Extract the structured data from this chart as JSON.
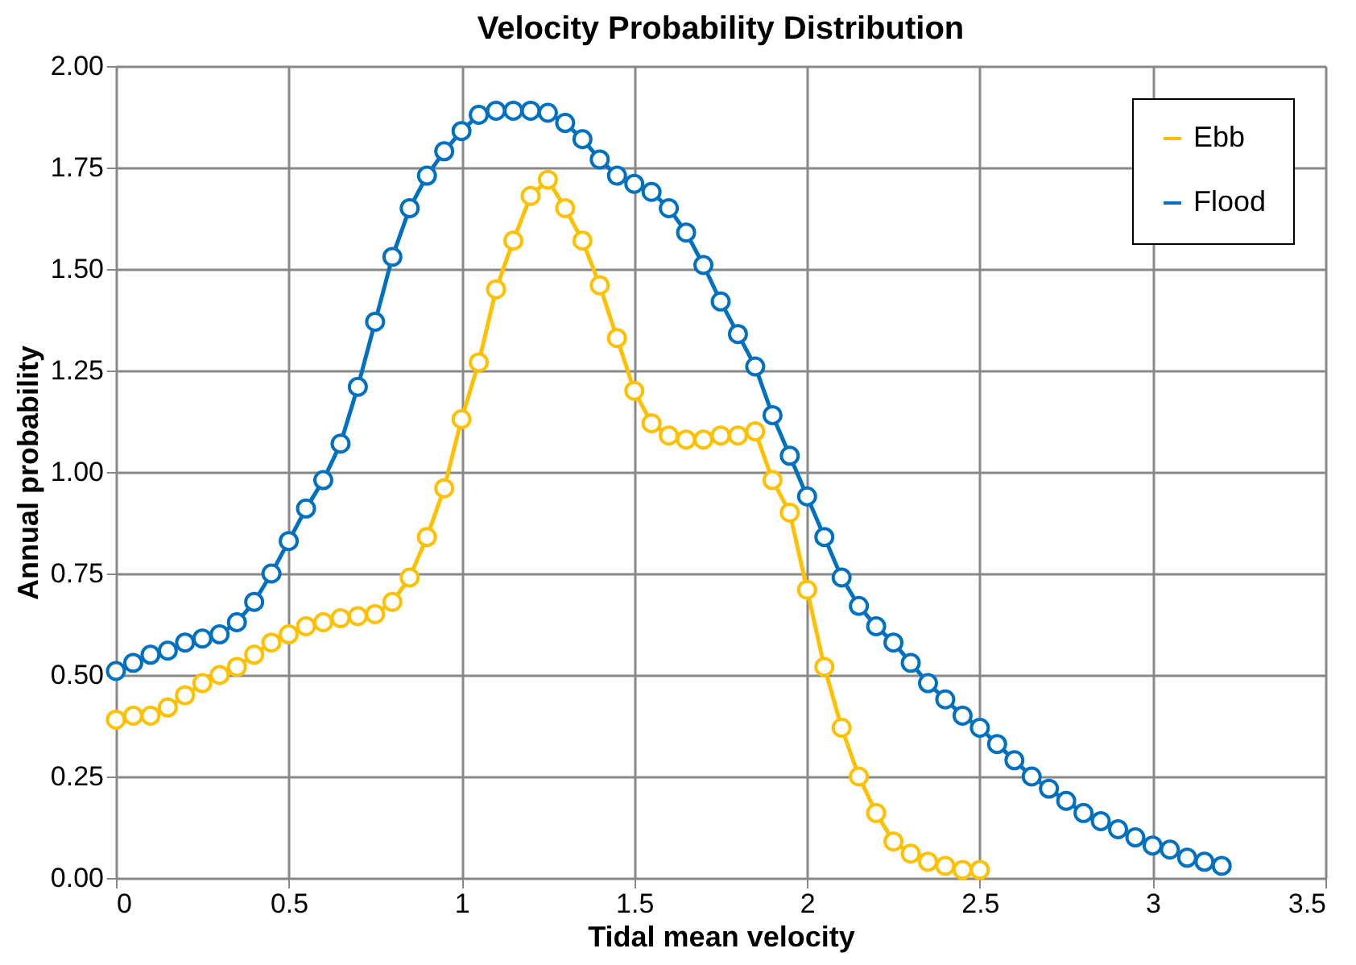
{
  "chart_data": {
    "type": "line",
    "title": "Velocity Probability Distribution",
    "xlabel": "Tidal mean velocity",
    "ylabel": "Annual probability",
    "xlim": [
      0,
      3.5
    ],
    "xticks": [
      0,
      0.5,
      1,
      1.5,
      2,
      2.5,
      3,
      3.5
    ],
    "ylim": [
      0,
      2
    ],
    "yticks": [
      {
        "value": 0,
        "label": "0.00"
      },
      {
        "value": 0.25,
        "label": "0.25"
      },
      {
        "value": 0.5,
        "label": "0.50"
      },
      {
        "value": 0.75,
        "label": "0.75"
      },
      {
        "value": 1,
        "label": "1.00"
      },
      {
        "value": 1.25,
        "label": "1.25"
      },
      {
        "value": 1.5,
        "label": "1.50"
      },
      {
        "value": 1.75,
        "label": "1.75"
      },
      {
        "value": 2,
        "label": "2.00"
      }
    ],
    "grid": true,
    "legend": "top right",
    "marker": "circle",
    "line_style": "solid",
    "series": [
      {
        "name": "Ebb",
        "color": "#ffc000",
        "x": [
          0,
          0.05,
          0.1,
          0.15,
          0.2,
          0.25,
          0.3,
          0.35,
          0.4,
          0.45,
          0.5,
          0.55,
          0.6,
          0.65,
          0.7,
          0.75,
          0.8,
          0.85,
          0.9,
          0.95,
          1.0,
          1.05,
          1.1,
          1.15,
          1.2,
          1.25,
          1.3,
          1.35,
          1.4,
          1.45,
          1.5,
          1.55,
          1.6,
          1.65,
          1.7,
          1.75,
          1.8,
          1.85,
          1.9,
          1.95,
          2.0,
          2.05,
          2.1,
          2.15,
          2.2,
          2.25,
          2.3,
          2.35,
          2.4,
          2.45,
          2.5
        ],
        "values": [
          0.39,
          0.4,
          0.4,
          0.42,
          0.45,
          0.48,
          0.5,
          0.52,
          0.55,
          0.58,
          0.6,
          0.62,
          0.63,
          0.64,
          0.645,
          0.65,
          0.68,
          0.74,
          0.84,
          0.96,
          1.13,
          1.27,
          1.45,
          1.57,
          1.68,
          1.72,
          1.65,
          1.57,
          1.46,
          1.33,
          1.2,
          1.12,
          1.09,
          1.08,
          1.08,
          1.09,
          1.09,
          1.1,
          0.98,
          0.9,
          0.71,
          0.52,
          0.37,
          0.25,
          0.16,
          0.09,
          0.06,
          0.04,
          0.03,
          0.02,
          0.02
        ]
      },
      {
        "name": "Flood",
        "color": "#0070c0",
        "x": [
          0,
          0.05,
          0.1,
          0.15,
          0.2,
          0.25,
          0.3,
          0.35,
          0.4,
          0.45,
          0.5,
          0.55,
          0.6,
          0.65,
          0.7,
          0.75,
          0.8,
          0.85,
          0.9,
          0.95,
          1.0,
          1.05,
          1.1,
          1.15,
          1.2,
          1.25,
          1.3,
          1.35,
          1.4,
          1.45,
          1.5,
          1.55,
          1.6,
          1.65,
          1.7,
          1.75,
          1.8,
          1.85,
          1.9,
          1.95,
          2.0,
          2.05,
          2.1,
          2.15,
          2.2,
          2.25,
          2.3,
          2.35,
          2.4,
          2.45,
          2.5,
          2.55,
          2.6,
          2.65,
          2.7,
          2.75,
          2.8,
          2.85,
          2.9,
          2.95,
          3.0,
          3.05,
          3.1,
          3.15,
          3.2
        ],
        "values": [
          0.51,
          0.53,
          0.55,
          0.56,
          0.58,
          0.59,
          0.6,
          0.63,
          0.68,
          0.75,
          0.83,
          0.91,
          0.98,
          1.07,
          1.21,
          1.37,
          1.53,
          1.65,
          1.73,
          1.79,
          1.84,
          1.88,
          1.89,
          1.89,
          1.89,
          1.885,
          1.86,
          1.82,
          1.77,
          1.73,
          1.71,
          1.69,
          1.65,
          1.59,
          1.51,
          1.42,
          1.34,
          1.26,
          1.14,
          1.04,
          0.94,
          0.84,
          0.74,
          0.67,
          0.62,
          0.58,
          0.53,
          0.48,
          0.44,
          0.4,
          0.37,
          0.33,
          0.29,
          0.25,
          0.22,
          0.19,
          0.16,
          0.14,
          0.12,
          0.1,
          0.08,
          0.07,
          0.05,
          0.04,
          0.03
        ]
      }
    ]
  }
}
